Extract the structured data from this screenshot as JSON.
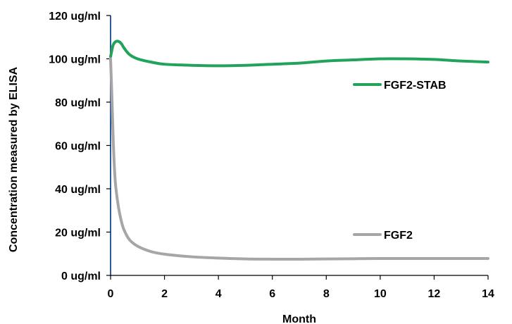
{
  "chart_data": {
    "type": "line",
    "title": "",
    "xlabel": "Month",
    "ylabel": "Concentration measured by ELISA",
    "xlim": [
      0,
      14
    ],
    "ylim": [
      0,
      120
    ],
    "x_ticks": [
      "0",
      "2",
      "4",
      "6",
      "8",
      "10",
      "12",
      "14"
    ],
    "y_ticks": [
      "0 ug/ml",
      "20 ug/ml",
      "40 ug/ml",
      "60 ug/ml",
      "80 ug/ml",
      "100 ug/ml",
      "120 ug/ml"
    ],
    "grid": false,
    "series": [
      {
        "name": "FGF2-STAB",
        "color": "#22a35a",
        "x": [
          0,
          0.05,
          0.1,
          0.2,
          0.3,
          0.4,
          0.5,
          0.7,
          1,
          1.5,
          2,
          3,
          4,
          5,
          6,
          7,
          8,
          9,
          10,
          11,
          12,
          13,
          14
        ],
        "values": [
          101,
          104,
          106.5,
          108,
          108,
          107,
          105,
          102,
          100,
          98.5,
          97.5,
          97,
          96.8,
          97,
          97.5,
          98,
          99,
          99.5,
          100,
          100,
          99.7,
          99,
          98.5
        ]
      },
      {
        "name": "FGF2",
        "color": "#a6a6a6",
        "x": [
          0,
          0.05,
          0.1,
          0.15,
          0.2,
          0.3,
          0.4,
          0.5,
          0.7,
          1,
          1.5,
          2,
          3,
          4,
          5,
          6,
          7,
          8,
          9,
          10,
          11,
          12,
          13,
          14
        ],
        "values": [
          100,
          82,
          62,
          48,
          40,
          31,
          25,
          21,
          16.5,
          13.5,
          11,
          9.8,
          8.6,
          8,
          7.6,
          7.5,
          7.5,
          7.6,
          7.7,
          7.8,
          7.8,
          7.8,
          7.8,
          7.8
        ]
      }
    ]
  }
}
